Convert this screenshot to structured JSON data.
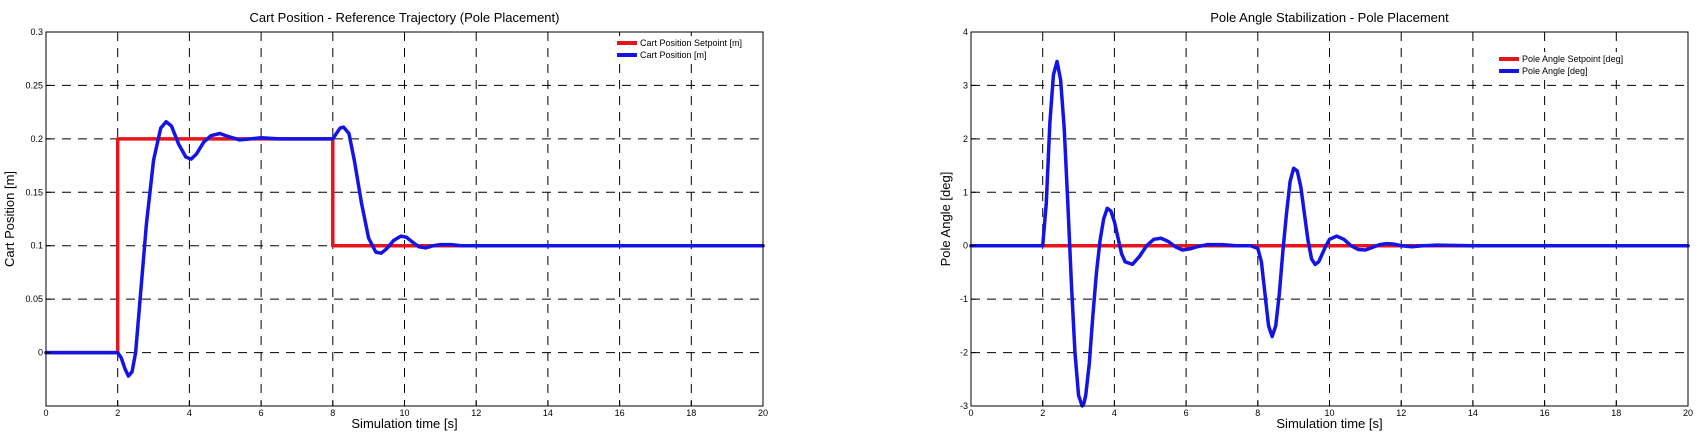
{
  "chart_data": [
    {
      "type": "line",
      "title": "Cart Position - Reference Trajectory (Pole Placement)",
      "xlabel": "Simulation time [s]",
      "ylabel": "Cart Position [m]",
      "xlim": [
        0,
        20
      ],
      "ylim": [
        -0.05,
        0.3
      ],
      "xticks": [
        0,
        2,
        4,
        6,
        8,
        10,
        12,
        14,
        16,
        18,
        20
      ],
      "yticks": [
        0,
        0.05,
        0.1,
        0.15,
        0.2,
        0.25,
        0.3
      ],
      "xtick_labels": [
        "0",
        "2",
        "4",
        "6",
        "8",
        "10",
        "12",
        "14",
        "16",
        "18",
        "20"
      ],
      "ytick_labels": [
        "0",
        "0.05",
        "0.1",
        "0.15",
        "0.2",
        "0.25",
        "0.3"
      ],
      "grid": true,
      "legend_position": "top-right",
      "series": [
        {
          "name": "Cart Position Setpoint [m]",
          "color": "#e8141b",
          "x": [
            0,
            2,
            2,
            8,
            8,
            20
          ],
          "y": [
            0,
            0,
            0.2,
            0.2,
            0.1,
            0.1
          ]
        },
        {
          "name": "Cart Position [m]",
          "color": "#1414e6",
          "x": [
            0,
            2.0,
            2.1,
            2.2,
            2.3,
            2.4,
            2.5,
            2.6,
            2.8,
            3.0,
            3.2,
            3.35,
            3.5,
            3.7,
            3.9,
            4.05,
            4.2,
            4.4,
            4.6,
            4.85,
            5.1,
            5.4,
            5.7,
            6.0,
            6.5,
            7.0,
            7.5,
            8.0,
            8.1,
            8.2,
            8.3,
            8.45,
            8.6,
            8.8,
            9.0,
            9.2,
            9.35,
            9.5,
            9.7,
            9.9,
            10.05,
            10.2,
            10.4,
            10.6,
            10.8,
            11.0,
            11.3,
            11.6,
            12.0,
            13.0,
            20.0
          ],
          "y": [
            0,
            0,
            -0.005,
            -0.015,
            -0.022,
            -0.018,
            0.0,
            0.04,
            0.12,
            0.18,
            0.21,
            0.216,
            0.212,
            0.195,
            0.183,
            0.181,
            0.186,
            0.197,
            0.203,
            0.205,
            0.202,
            0.199,
            0.2,
            0.201,
            0.2,
            0.2,
            0.2,
            0.2,
            0.205,
            0.21,
            0.211,
            0.205,
            0.18,
            0.14,
            0.107,
            0.094,
            0.093,
            0.097,
            0.105,
            0.109,
            0.108,
            0.104,
            0.099,
            0.098,
            0.1,
            0.101,
            0.101,
            0.1,
            0.1,
            0.1,
            0.1
          ]
        }
      ]
    },
    {
      "type": "line",
      "title": "Pole Angle Stabilization - Pole Placement",
      "xlabel": "Simulation time [s]",
      "ylabel": "Pole Angle [deg]",
      "xlim": [
        0,
        20
      ],
      "ylim": [
        -3,
        4
      ],
      "xticks": [
        0,
        2,
        4,
        6,
        8,
        10,
        12,
        14,
        16,
        18,
        20
      ],
      "yticks": [
        -3,
        -2,
        -1,
        0,
        1,
        2,
        3,
        4
      ],
      "xtick_labels": [
        "0",
        "2",
        "4",
        "6",
        "8",
        "10",
        "12",
        "14",
        "16",
        "18",
        "20"
      ],
      "ytick_labels": [
        "-3",
        "-2",
        "-1",
        "0",
        "1",
        "2",
        "3",
        "4"
      ],
      "grid": true,
      "legend_position": "top-right",
      "series": [
        {
          "name": "Pole Angle Setpoint [deg]",
          "color": "#e8141b",
          "x": [
            0,
            20
          ],
          "y": [
            0,
            0
          ]
        },
        {
          "name": "Pole Angle [deg]",
          "color": "#1414e6",
          "x": [
            0,
            2.0,
            2.1,
            2.2,
            2.3,
            2.4,
            2.5,
            2.6,
            2.7,
            2.8,
            2.9,
            3.0,
            3.1,
            3.15,
            3.2,
            3.3,
            3.4,
            3.5,
            3.6,
            3.7,
            3.8,
            3.9,
            4.0,
            4.1,
            4.2,
            4.3,
            4.5,
            4.7,
            4.9,
            5.1,
            5.3,
            5.5,
            5.7,
            5.9,
            6.1,
            6.3,
            6.6,
            7.0,
            7.4,
            7.8,
            8.0,
            8.1,
            8.2,
            8.3,
            8.4,
            8.5,
            8.6,
            8.7,
            8.8,
            8.9,
            9.0,
            9.1,
            9.2,
            9.3,
            9.4,
            9.5,
            9.6,
            9.7,
            9.8,
            9.9,
            10.0,
            10.2,
            10.4,
            10.6,
            10.8,
            11.0,
            11.2,
            11.4,
            11.6,
            11.8,
            12.0,
            12.3,
            12.6,
            13.0,
            14.0,
            20.0
          ],
          "y": [
            0,
            0,
            0.8,
            2.3,
            3.2,
            3.45,
            3.1,
            2.2,
            0.8,
            -0.7,
            -2.0,
            -2.8,
            -3.0,
            -2.95,
            -2.8,
            -2.2,
            -1.3,
            -0.5,
            0.1,
            0.5,
            0.7,
            0.65,
            0.45,
            0.15,
            -0.15,
            -0.3,
            -0.35,
            -0.2,
            0.0,
            0.12,
            0.14,
            0.08,
            -0.02,
            -0.08,
            -0.06,
            -0.02,
            0.02,
            0.02,
            0.0,
            0.0,
            -0.05,
            -0.3,
            -0.9,
            -1.5,
            -1.7,
            -1.5,
            -0.9,
            -0.1,
            0.6,
            1.2,
            1.45,
            1.4,
            1.1,
            0.6,
            0.1,
            -0.25,
            -0.35,
            -0.3,
            -0.15,
            0.0,
            0.12,
            0.18,
            0.12,
            0.0,
            -0.07,
            -0.08,
            -0.03,
            0.02,
            0.04,
            0.03,
            0.0,
            -0.02,
            0.0,
            0.01,
            0.0,
            0.0
          ]
        }
      ]
    }
  ]
}
